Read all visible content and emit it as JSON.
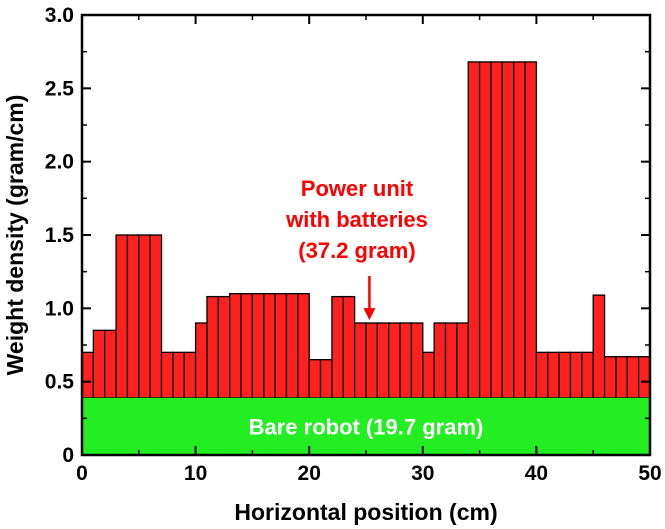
{
  "chart_data": {
    "type": "bar",
    "xlabel": "Horizontal position (cm)",
    "ylabel": "Weight density (gram/cm)",
    "xlim": [
      0,
      50
    ],
    "ylim": [
      0,
      3.0
    ],
    "x_ticks": [
      "0",
      "10",
      "20",
      "30",
      "40",
      "50"
    ],
    "y_ticks": [
      "0",
      "0.5",
      "1.0",
      "1.5",
      "2.0",
      "2.5",
      "3.0"
    ],
    "bin_width_cm": 1,
    "bar_color": "#ff2020",
    "base": {
      "label": "Bare robot (19.7 gram)",
      "value": 0.39,
      "color": "#22ee22"
    },
    "values": [
      0.7,
      0.85,
      0.85,
      1.5,
      1.5,
      1.5,
      1.5,
      0.7,
      0.7,
      0.7,
      0.9,
      1.08,
      1.08,
      1.1,
      1.1,
      1.1,
      1.1,
      1.1,
      1.1,
      1.1,
      0.65,
      0.65,
      1.08,
      1.08,
      0.9,
      0.9,
      0.9,
      0.9,
      0.9,
      0.9,
      0.7,
      0.9,
      0.9,
      0.9,
      2.68,
      2.68,
      2.68,
      2.68,
      2.68,
      2.68,
      0.7,
      0.7,
      0.7,
      0.7,
      0.7,
      1.09,
      0.67,
      0.67,
      0.67,
      0.67
    ],
    "annotation": {
      "lines": [
        "Power unit",
        "with batteries",
        "(37.2 gram)"
      ],
      "arrow_x": 25.3,
      "arrow_y": 0.92,
      "color": "#ff0000"
    }
  }
}
